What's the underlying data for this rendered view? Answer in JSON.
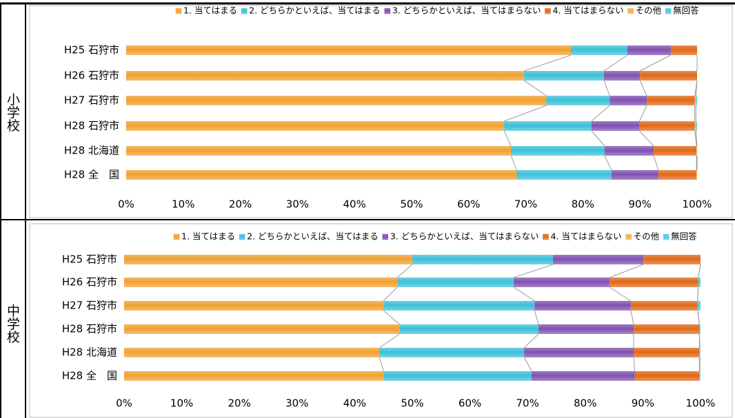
{
  "chart_data": [
    {
      "type": "stacked_barh",
      "group": "小学校",
      "categories": [
        "H25 石狩市",
        "H26 石狩市",
        "H27 石狩市",
        "H28 石狩市",
        "H28 北海道",
        "H28 全　国"
      ],
      "series": [
        {
          "name": "1. 当てはまる",
          "color": "#f0a030",
          "values": [
            77.9,
            69.7,
            73.6,
            66.2,
            67.4,
            68.4
          ]
        },
        {
          "name": "2. どちらかといえば、当てはまる",
          "color": "#3cc0d8",
          "values": [
            9.9,
            14.0,
            11.1,
            15.3,
            16.4,
            16.6
          ]
        },
        {
          "name": "3. どちらかといえば、当てはまらない",
          "color": "#8050b0",
          "values": [
            7.6,
            6.3,
            6.5,
            8.4,
            8.6,
            8.2
          ]
        },
        {
          "name": "4. 当てはまらない",
          "color": "#e06818",
          "values": [
            4.6,
            10.0,
            8.4,
            9.7,
            7.5,
            6.7
          ]
        },
        {
          "name": "その他",
          "color": "#f4b050",
          "values": [
            0,
            0,
            0.2,
            0.2,
            0.1,
            0.1
          ]
        },
        {
          "name": "無回答",
          "color": "#50c8e0",
          "values": [
            0,
            0,
            0.2,
            0.2,
            0,
            0
          ]
        }
      ],
      "xlim": [
        0,
        100
      ],
      "xticks": [
        {
          "value": 0,
          "label": "0%"
        },
        {
          "value": 10,
          "label": "10%"
        },
        {
          "value": 20,
          "label": "20%"
        },
        {
          "value": 30,
          "label": "30%"
        },
        {
          "value": 40,
          "label": "40%"
        },
        {
          "value": 50,
          "label": "50%"
        },
        {
          "value": 60,
          "label": "60%"
        },
        {
          "value": 70,
          "label": "70%"
        },
        {
          "value": 80,
          "label": "80%"
        },
        {
          "value": 90,
          "label": "90%"
        },
        {
          "value": 100,
          "label": "100%"
        }
      ],
      "legend": "top"
    },
    {
      "type": "stacked_barh",
      "group": "中学校",
      "categories": [
        "H25 石狩市",
        "H26 石狩市",
        "H27 石狩市",
        "H28 石狩市",
        "H28 北海道",
        "H28 全　国"
      ],
      "series": [
        {
          "name": "1. 当てはまる",
          "color": "#f0a030",
          "values": [
            50.0,
            47.4,
            45.0,
            47.8,
            44.3,
            45.0
          ]
        },
        {
          "name": "2. どちらかといえば、当てはまる",
          "color": "#3cc0d8",
          "values": [
            24.4,
            20.2,
            26.2,
            24.1,
            25.1,
            25.7
          ]
        },
        {
          "name": "3. どちらかといえば、当てはまらない",
          "color": "#8050b0",
          "values": [
            15.7,
            16.6,
            16.7,
            16.5,
            19.0,
            17.9
          ]
        },
        {
          "name": "4. 当てはまらない",
          "color": "#e06818",
          "values": [
            9.9,
            15.4,
            11.6,
            11.4,
            11.4,
            11.2
          ]
        },
        {
          "name": "その他",
          "color": "#f4b050",
          "values": [
            0,
            0,
            0,
            0,
            0.1,
            0.1
          ]
        },
        {
          "name": "無回答",
          "color": "#50c8e0",
          "values": [
            0,
            0.4,
            0.5,
            0.2,
            0.1,
            0.1
          ]
        }
      ],
      "xlim": [
        0,
        100
      ],
      "xticks": [
        {
          "value": 0,
          "label": "0%"
        },
        {
          "value": 10,
          "label": "10%"
        },
        {
          "value": 20,
          "label": "20%"
        },
        {
          "value": 30,
          "label": "30%"
        },
        {
          "value": 40,
          "label": "40%"
        },
        {
          "value": 50,
          "label": "50%"
        },
        {
          "value": 60,
          "label": "60%"
        },
        {
          "value": 70,
          "label": "70%"
        },
        {
          "value": 80,
          "label": "80%"
        },
        {
          "value": 90,
          "label": "90%"
        },
        {
          "value": 100,
          "label": "100%"
        }
      ],
      "legend": "top"
    }
  ]
}
